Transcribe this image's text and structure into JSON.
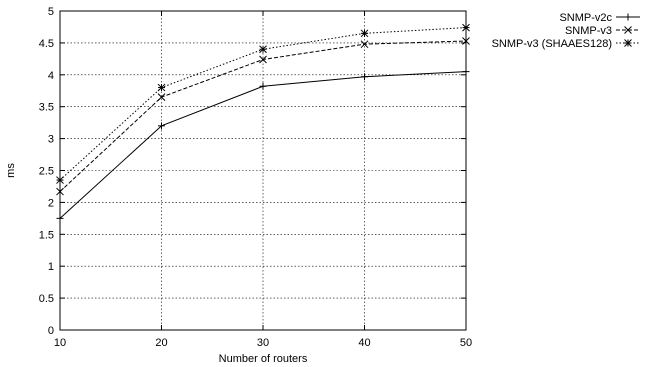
{
  "chart_data": {
    "type": "line",
    "title": "",
    "xlabel": "Number of routers",
    "ylabel": "ms",
    "x": [
      10,
      20,
      30,
      40,
      50
    ],
    "x_ticks": [
      "10",
      "20",
      "30",
      "40",
      "50"
    ],
    "y_ticks": [
      "0",
      "0.5",
      "1",
      "1.5",
      "2",
      "2.5",
      "3",
      "3.5",
      "4",
      "4.5",
      "5"
    ],
    "xlim": [
      10,
      50
    ],
    "ylim": [
      0,
      5
    ],
    "grid": true,
    "legend_position": "top-right",
    "series": [
      {
        "name": "SNMP-v2c",
        "values": [
          1.75,
          3.2,
          3.82,
          3.97,
          4.05
        ],
        "line_style": "solid",
        "marker": "plus"
      },
      {
        "name": "SNMP-v3",
        "values": [
          2.17,
          3.65,
          4.24,
          4.48,
          4.53
        ],
        "line_style": "dashed",
        "marker": "cross"
      },
      {
        "name": "SNMP-v3 (SHAAES128)",
        "values": [
          2.35,
          3.8,
          4.4,
          4.65,
          4.74
        ],
        "line_style": "dotted",
        "marker": "star"
      }
    ]
  }
}
